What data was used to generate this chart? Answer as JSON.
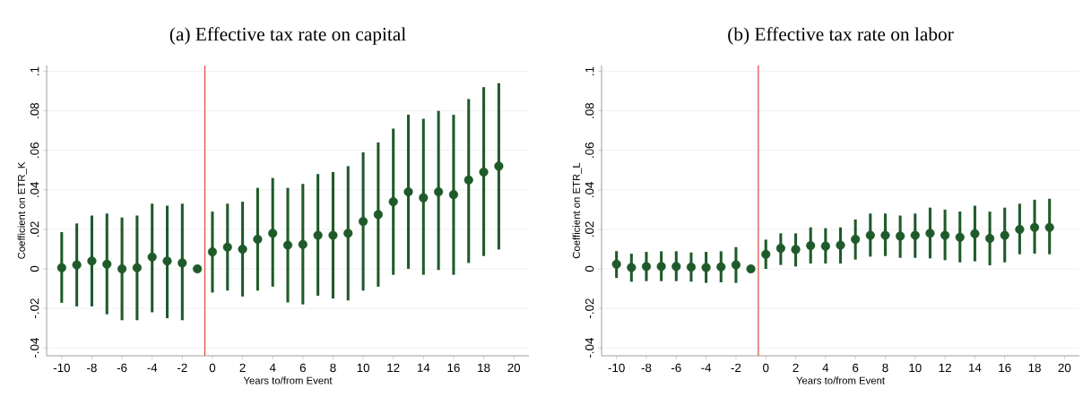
{
  "chart_data": [
    {
      "type": "scatter",
      "title": "(a) Effective tax rate on capital",
      "xlabel": "Years to/from Event",
      "ylabel": "Coefficient on ETR_K",
      "color": "#1f5a2a",
      "marker": "circle",
      "grid": "y",
      "xlim": [
        -11,
        21
      ],
      "ylim": [
        -0.044,
        0.103
      ],
      "xticks": [
        -10,
        -8,
        -6,
        -4,
        -2,
        0,
        2,
        4,
        6,
        8,
        10,
        12,
        14,
        16,
        18,
        20
      ],
      "yticks": [
        {
          "value": -0.04,
          "label": "-.04"
        },
        {
          "value": -0.02,
          "label": "-.02"
        },
        0,
        {
          "value": 0.02,
          "label": ".02"
        },
        {
          "value": 0.04,
          "label": ".04"
        },
        {
          "value": 0.06,
          "label": ".06"
        },
        {
          "value": 0.08,
          "label": ".08"
        },
        {
          "value": 0.1,
          "label": ".1"
        }
      ],
      "ref_lines": [
        {
          "axis": "x",
          "value": -0.5,
          "color": "#e0463c"
        }
      ],
      "x": [
        -10,
        -9,
        -8,
        -7,
        -6,
        -5,
        -4,
        -3,
        -2,
        -1,
        0,
        1,
        2,
        3,
        4,
        5,
        6,
        7,
        8,
        9,
        10,
        11,
        12,
        13,
        14,
        15,
        16,
        17,
        18,
        19
      ],
      "values": [
        0.0006,
        0.002,
        0.004,
        0.0024,
        0,
        0.0006,
        0.006,
        0.004,
        0.003,
        0,
        0.0086,
        0.011,
        0.01,
        0.015,
        0.018,
        0.012,
        0.0124,
        0.017,
        0.017,
        0.018,
        0.024,
        0.0275,
        0.034,
        0.039,
        0.036,
        0.039,
        0.0376,
        0.045,
        0.049,
        0.052
      ],
      "errors": [
        [
          -0.0172,
          0.0186
        ],
        [
          -0.019,
          0.023
        ],
        [
          -0.019,
          0.027
        ],
        [
          -0.023,
          0.028
        ],
        [
          -0.026,
          0.026
        ],
        [
          -0.026,
          0.027
        ],
        [
          -0.022,
          0.033
        ],
        [
          -0.025,
          0.032
        ],
        [
          -0.026,
          0.033
        ],
        null,
        [
          -0.012,
          0.029
        ],
        [
          -0.011,
          0.033
        ],
        [
          -0.014,
          0.034
        ],
        [
          -0.011,
          0.041
        ],
        [
          -0.009,
          0.046
        ],
        [
          -0.017,
          0.041
        ],
        [
          -0.018,
          0.043
        ],
        [
          -0.0136,
          0.048
        ],
        [
          -0.015,
          0.049
        ],
        [
          -0.016,
          0.052
        ],
        [
          -0.011,
          0.059
        ],
        [
          -0.009,
          0.064
        ],
        [
          -0.003,
          0.071
        ],
        [
          0,
          0.078
        ],
        [
          -0.003,
          0.076
        ],
        [
          -0.0006,
          0.08
        ],
        [
          -0.003,
          0.078
        ],
        [
          0.003,
          0.086
        ],
        [
          0.0065,
          0.092
        ],
        [
          0.0098,
          0.094
        ]
      ]
    },
    {
      "type": "scatter",
      "title": "(b) Effective tax rate on labor",
      "xlabel": "Years to/from Event",
      "ylabel": "Coefficient on ETR_L",
      "color": "#1f5a2a",
      "marker": "circle",
      "grid": "y",
      "xlim": [
        -11,
        21
      ],
      "ylim": [
        -0.044,
        0.103
      ],
      "xticks": [
        -10,
        -8,
        -6,
        -4,
        -2,
        0,
        2,
        4,
        6,
        8,
        10,
        12,
        14,
        16,
        18,
        20
      ],
      "yticks": [
        {
          "value": -0.04,
          "label": "-.04"
        },
        {
          "value": -0.02,
          "label": "-.02"
        },
        0,
        {
          "value": 0.02,
          "label": ".02"
        },
        {
          "value": 0.04,
          "label": ".04"
        },
        {
          "value": 0.06,
          "label": ".06"
        },
        {
          "value": 0.08,
          "label": ".08"
        },
        {
          "value": 0.1,
          "label": ".1"
        }
      ],
      "ref_lines": [
        {
          "axis": "x",
          "value": -0.5,
          "color": "#e0463c"
        }
      ],
      "x": [
        -10,
        -9,
        -8,
        -7,
        -6,
        -5,
        -4,
        -3,
        -2,
        -1,
        0,
        1,
        2,
        3,
        4,
        5,
        6,
        7,
        8,
        9,
        10,
        11,
        12,
        13,
        14,
        15,
        16,
        17,
        18,
        19
      ],
      "values": [
        0.0024,
        0.0007,
        0.0012,
        0.0012,
        0.0012,
        0.0009,
        0.0007,
        0.001,
        0.002,
        0,
        0.0074,
        0.0104,
        0.0098,
        0.0118,
        0.0115,
        0.012,
        0.015,
        0.017,
        0.017,
        0.0166,
        0.017,
        0.018,
        0.017,
        0.016,
        0.0178,
        0.0154,
        0.017,
        0.02,
        0.021,
        0.021
      ],
      "errors": [
        [
          -0.0046,
          0.009
        ],
        [
          -0.0065,
          0.0077
        ],
        [
          -0.0062,
          0.0086
        ],
        [
          -0.0062,
          0.0089
        ],
        [
          -0.0062,
          0.0089
        ],
        [
          -0.0065,
          0.0083
        ],
        [
          -0.0071,
          0.0086
        ],
        [
          -0.0068,
          0.0089
        ],
        [
          -0.0071,
          0.011
        ],
        null,
        [
          0,
          0.0148
        ],
        [
          0.002,
          0.018
        ],
        [
          0.0012,
          0.018
        ],
        [
          0.0027,
          0.021
        ],
        [
          0.0027,
          0.0206
        ],
        [
          0.0027,
          0.021
        ],
        [
          0.0047,
          0.025
        ],
        [
          0.0062,
          0.028
        ],
        [
          0.0065,
          0.028
        ],
        [
          0.0056,
          0.027
        ],
        [
          0.0056,
          0.028
        ],
        [
          0.0053,
          0.031
        ],
        [
          0.0044,
          0.03
        ],
        [
          0.0033,
          0.029
        ],
        [
          0.0038,
          0.032
        ],
        [
          0.0018,
          0.029
        ],
        [
          0.0033,
          0.031
        ],
        [
          0.0074,
          0.033
        ],
        [
          0.0077,
          0.035
        ],
        [
          0.0074,
          0.0355
        ]
      ]
    }
  ]
}
